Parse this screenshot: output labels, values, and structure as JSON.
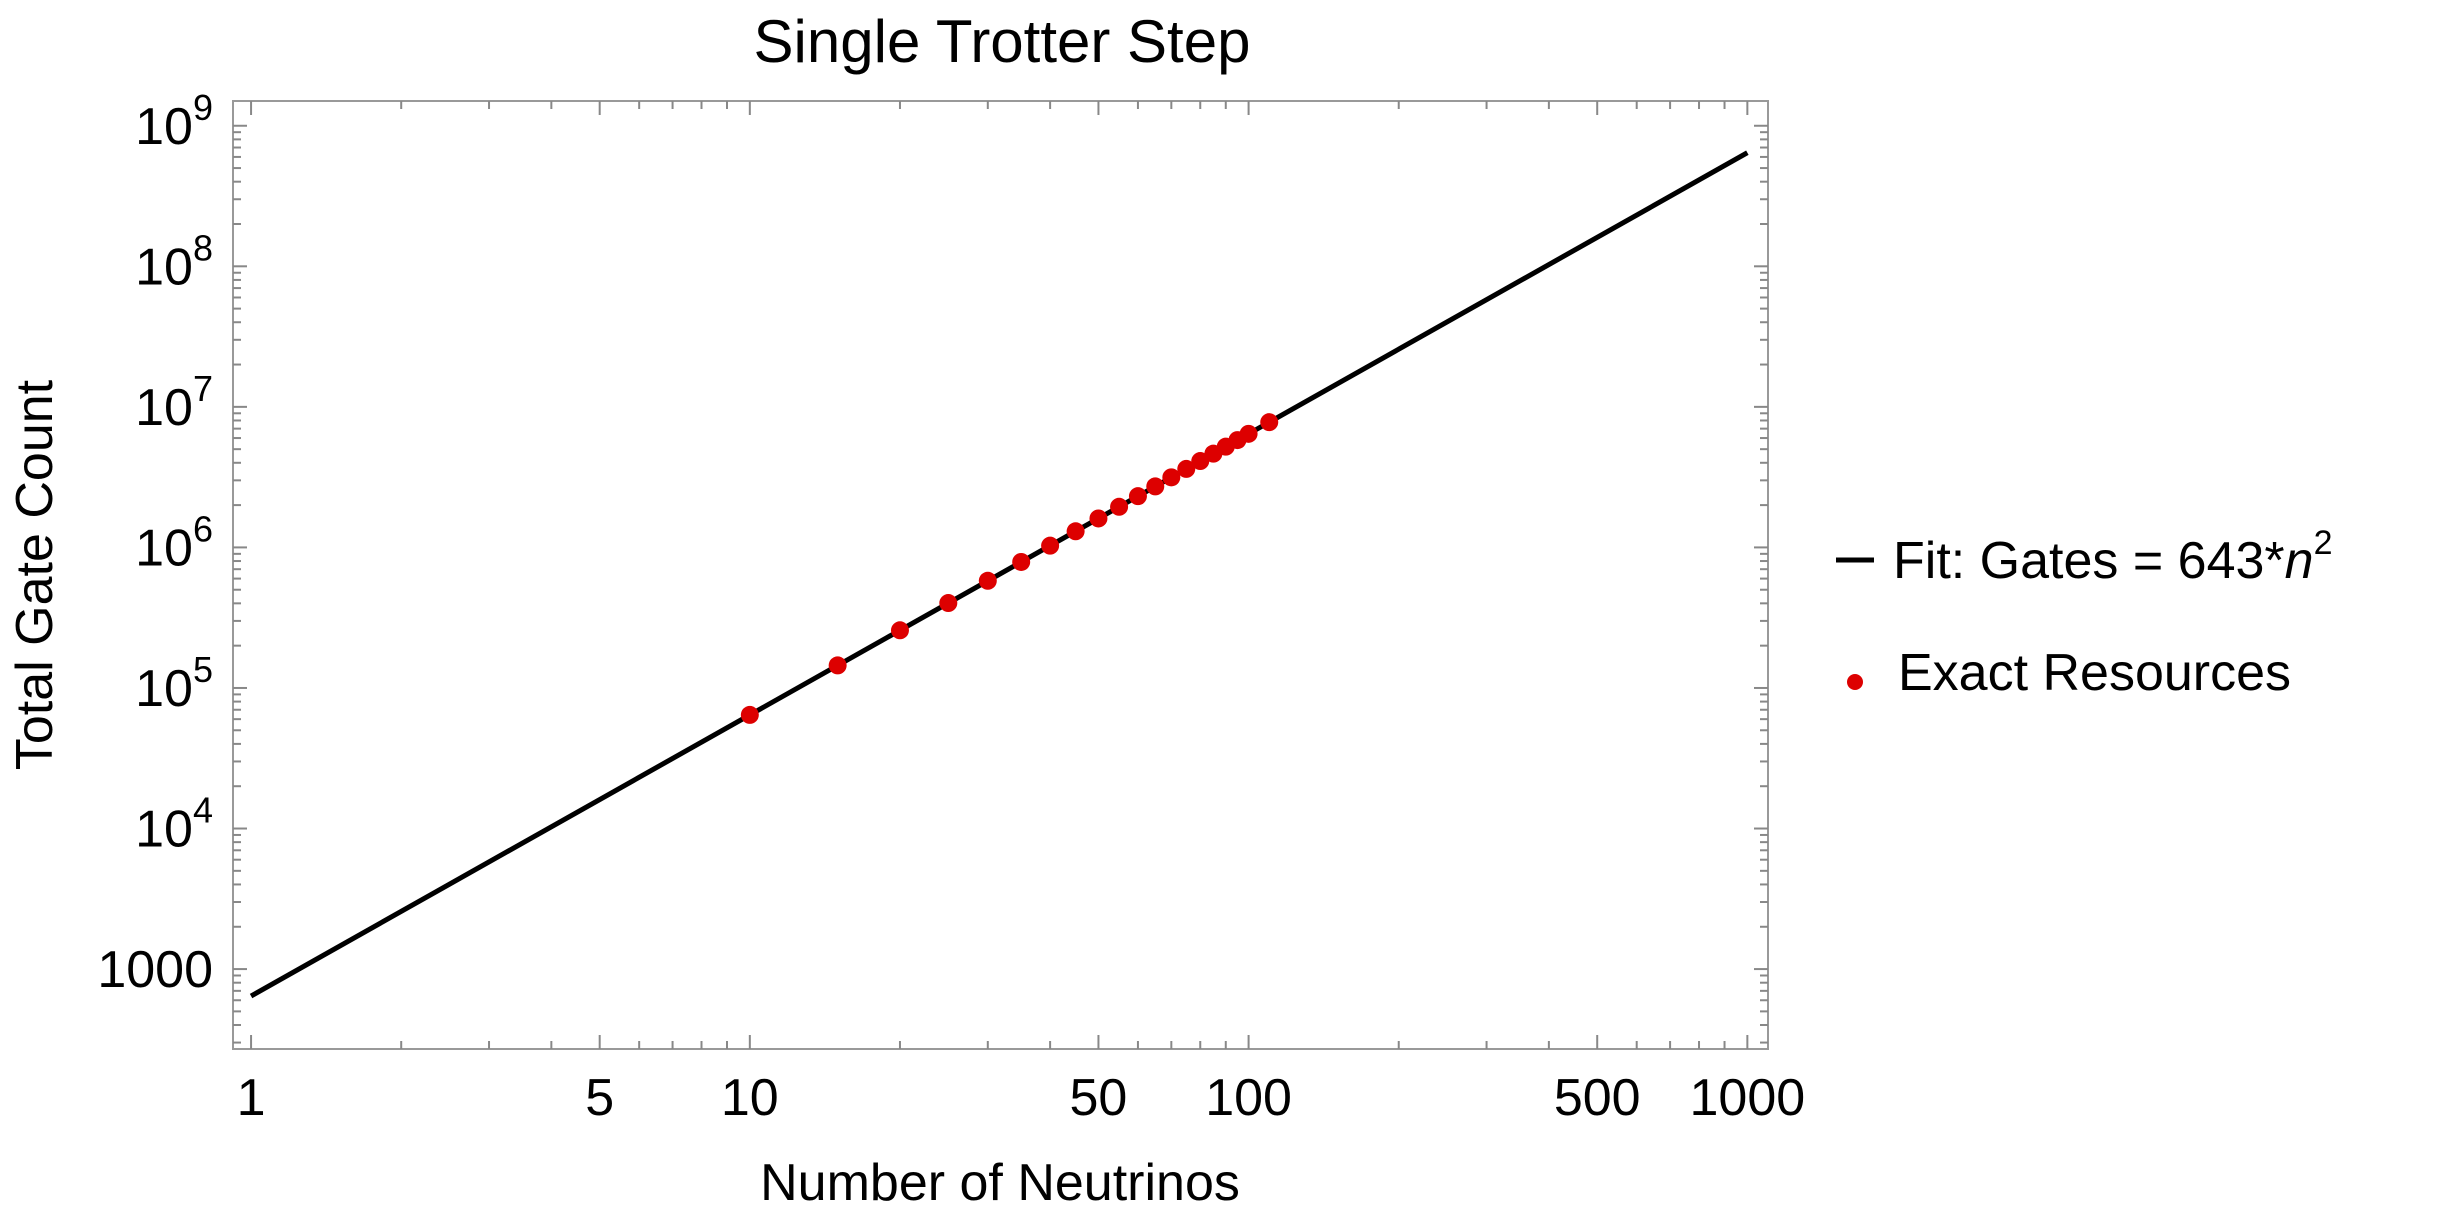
{
  "chart_data": {
    "type": "scatter",
    "title": "Single Trotter Step",
    "xlabel": "Number of Neutrinos",
    "ylabel": "Total Gate Count",
    "x_scale": "log",
    "y_scale": "log",
    "xlim": [
      0.92,
      1100
    ],
    "ylim": [
      270,
      1500000000.0
    ],
    "x_ticks": [
      {
        "value": 1,
        "label": "1"
      },
      {
        "value": 5,
        "label": "5"
      },
      {
        "value": 10,
        "label": "10"
      },
      {
        "value": 50,
        "label": "50"
      },
      {
        "value": 100,
        "label": "100"
      },
      {
        "value": 500,
        "label": "500"
      },
      {
        "value": 1000,
        "label": "1000"
      }
    ],
    "y_ticks": [
      {
        "value": 1000,
        "base": "1000",
        "exp": ""
      },
      {
        "value": 10000,
        "base": "10",
        "exp": "4"
      },
      {
        "value": 100000,
        "base": "10",
        "exp": "5"
      },
      {
        "value": 1000000,
        "base": "10",
        "exp": "6"
      },
      {
        "value": 10000000,
        "base": "10",
        "exp": "7"
      },
      {
        "value": 100000000,
        "base": "10",
        "exp": "8"
      },
      {
        "value": 1000000000,
        "base": "10",
        "exp": "9"
      }
    ],
    "grid": false,
    "legend_position": "right",
    "series": [
      {
        "name": "Fit: Gates = 643*n2",
        "legend_text": "Fit: Gates = 643",
        "legend_star": "*",
        "legend_var": "n",
        "legend_exp": "2",
        "type": "line",
        "color": "#000000",
        "coefficient": 643,
        "exponent": 2,
        "x_range": [
          1,
          1000
        ]
      },
      {
        "name": "Exact Resources",
        "type": "scatter",
        "color": "#dd0000",
        "points": [
          {
            "x": 10,
            "y": 64300
          },
          {
            "x": 15,
            "y": 144675
          },
          {
            "x": 20,
            "y": 257200
          },
          {
            "x": 25,
            "y": 401875
          },
          {
            "x": 30,
            "y": 578700
          },
          {
            "x": 35,
            "y": 787675
          },
          {
            "x": 40,
            "y": 1028800
          },
          {
            "x": 45,
            "y": 1302075
          },
          {
            "x": 50,
            "y": 1607500
          },
          {
            "x": 55,
            "y": 1945075
          },
          {
            "x": 60,
            "y": 2314800
          },
          {
            "x": 65,
            "y": 2716675
          },
          {
            "x": 70,
            "y": 3150700
          },
          {
            "x": 75,
            "y": 3616875
          },
          {
            "x": 80,
            "y": 4115200
          },
          {
            "x": 85,
            "y": 4645675
          },
          {
            "x": 90,
            "y": 5208300
          },
          {
            "x": 95,
            "y": 5803075
          },
          {
            "x": 100,
            "y": 6430000
          },
          {
            "x": 110,
            "y": 7780300
          }
        ]
      }
    ]
  }
}
